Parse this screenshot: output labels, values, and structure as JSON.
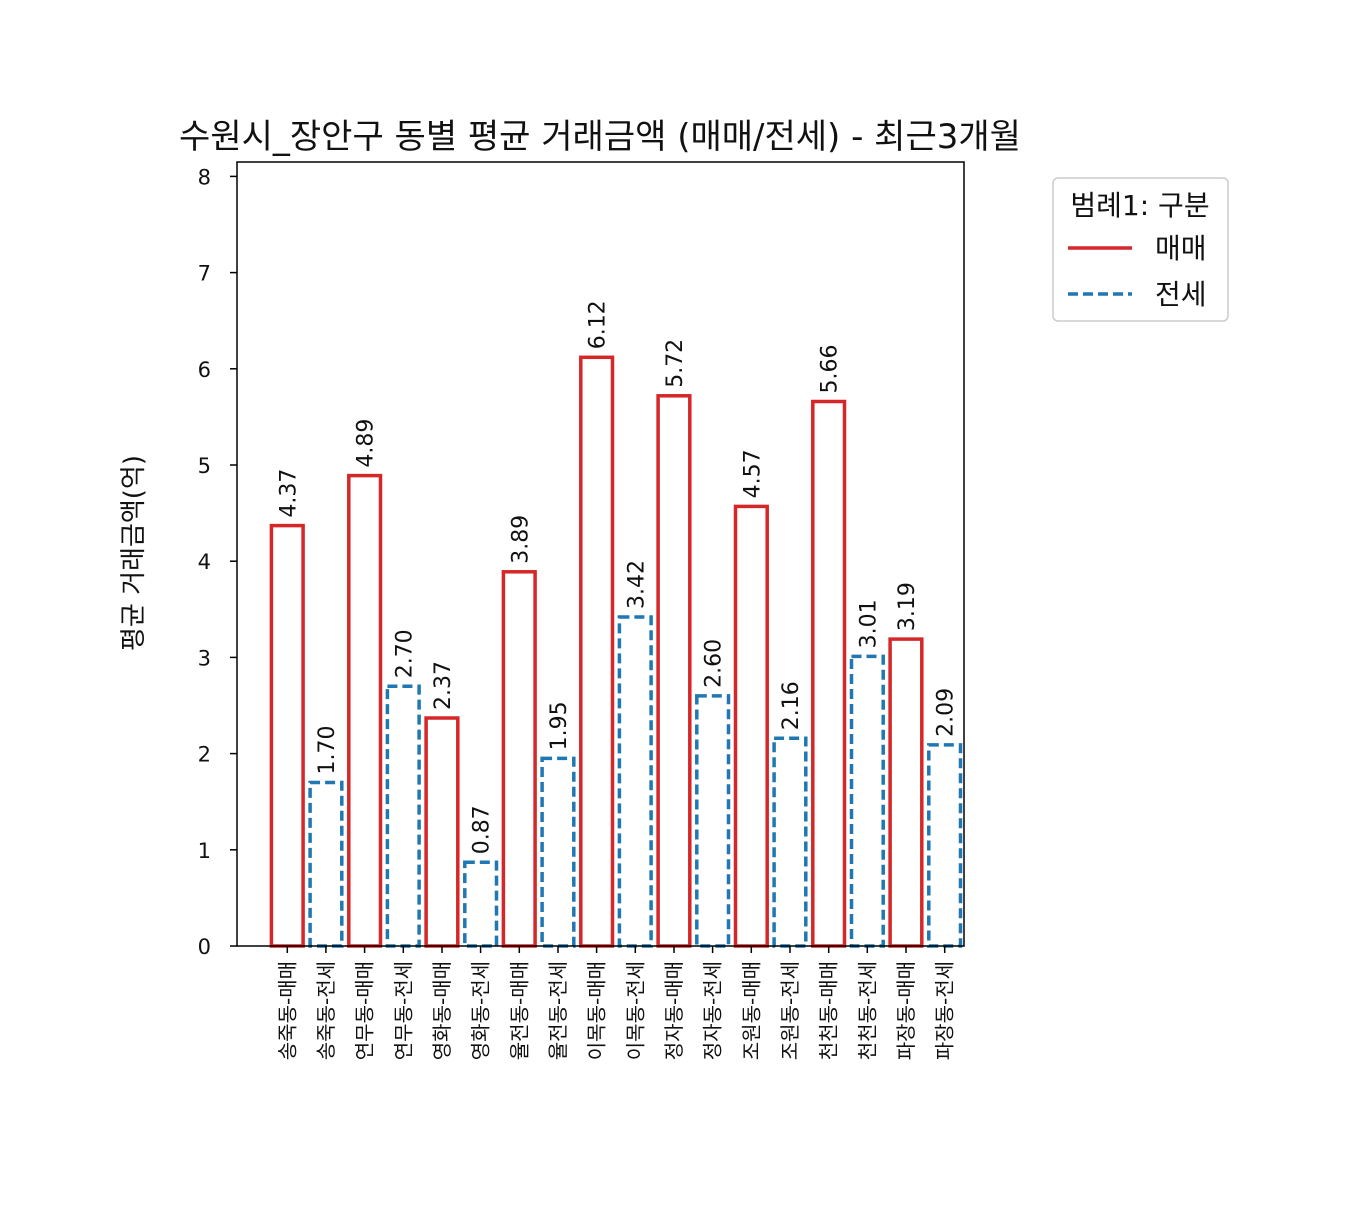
{
  "chart_data": {
    "type": "bar",
    "title": "수원시_장안구 동별 평균 거래금액 (매매/전세) - 최근3개월",
    "xlabel": "",
    "ylabel": "평균 거래금액(억)",
    "ylim": [
      0,
      8.15
    ],
    "yticks": [
      0,
      1,
      2,
      3,
      4,
      5,
      6,
      7,
      8
    ],
    "categories": [
      "송죽동-매매",
      "송죽동-전세",
      "연무동-매매",
      "연무동-전세",
      "영화동-매매",
      "영화동-전세",
      "율전동-매매",
      "율전동-전세",
      "이목동-매매",
      "이목동-전세",
      "정자동-매매",
      "정자동-전세",
      "조원동-매매",
      "조원동-전세",
      "천천동-매매",
      "천천동-전세",
      "파장동-매매",
      "파장동-전세"
    ],
    "values": [
      4.37,
      1.7,
      4.89,
      2.7,
      2.37,
      0.87,
      3.89,
      1.95,
      6.12,
      3.42,
      5.72,
      2.6,
      4.57,
      2.16,
      5.66,
      3.01,
      3.19,
      2.09
    ],
    "value_labels": [
      "4.37",
      "1.70",
      "4.89",
      "2.70",
      "2.37",
      "0.87",
      "3.89",
      "1.95",
      "6.12",
      "3.42",
      "5.72",
      "2.60",
      "4.57",
      "2.16",
      "5.66",
      "3.01",
      "3.19",
      "2.09"
    ],
    "bar_types": [
      "매매",
      "전세",
      "매매",
      "전세",
      "매매",
      "전세",
      "매매",
      "전세",
      "매매",
      "전세",
      "매매",
      "전세",
      "매매",
      "전세",
      "매매",
      "전세",
      "매매",
      "전세"
    ],
    "legend": {
      "title": "범례1: 구분",
      "placement": "outside-top-right",
      "items": [
        {
          "label": "매매",
          "color": "#d62728",
          "style": "solid"
        },
        {
          "label": "전세",
          "color": "#1f77b4",
          "style": "dashed"
        }
      ]
    },
    "grid": false
  }
}
